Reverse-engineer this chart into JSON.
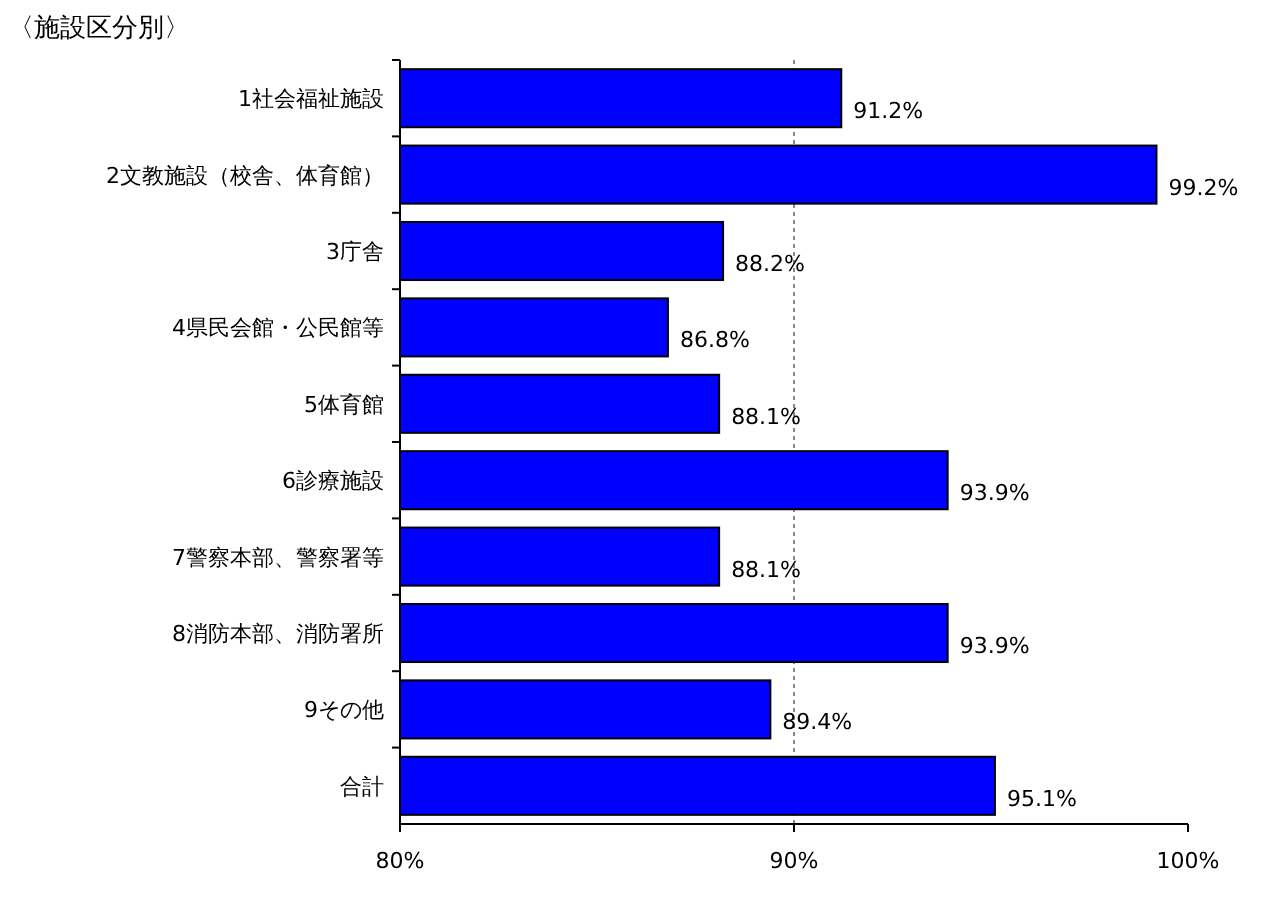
{
  "chart_data": {
    "type": "bar",
    "orientation": "horizontal",
    "title": "〈施設区分別〉",
    "categories": [
      "1社会福祉施設",
      "2文教施設（校舎、体育館）",
      "3庁舎",
      "4県民会館・公民館等",
      "5体育館",
      "6診療施設",
      "7警察本部、警察署等",
      "8消防本部、消防署所",
      "9その他",
      "合計"
    ],
    "values": [
      91.2,
      99.2,
      88.2,
      86.8,
      88.1,
      93.9,
      88.1,
      93.9,
      89.4,
      95.1
    ],
    "value_labels": [
      "91.2%",
      "99.2%",
      "88.2%",
      "86.8%",
      "88.1%",
      "93.9%",
      "88.1%",
      "93.9%",
      "89.4%",
      "95.1%"
    ],
    "color": "#0000ff",
    "xlim": [
      80,
      100
    ],
    "xticks": [
      {
        "value": 80,
        "label": "80%"
      },
      {
        "value": 90,
        "label": "90%"
      },
      {
        "value": 100,
        "label": "100%"
      }
    ],
    "grid": "x"
  }
}
